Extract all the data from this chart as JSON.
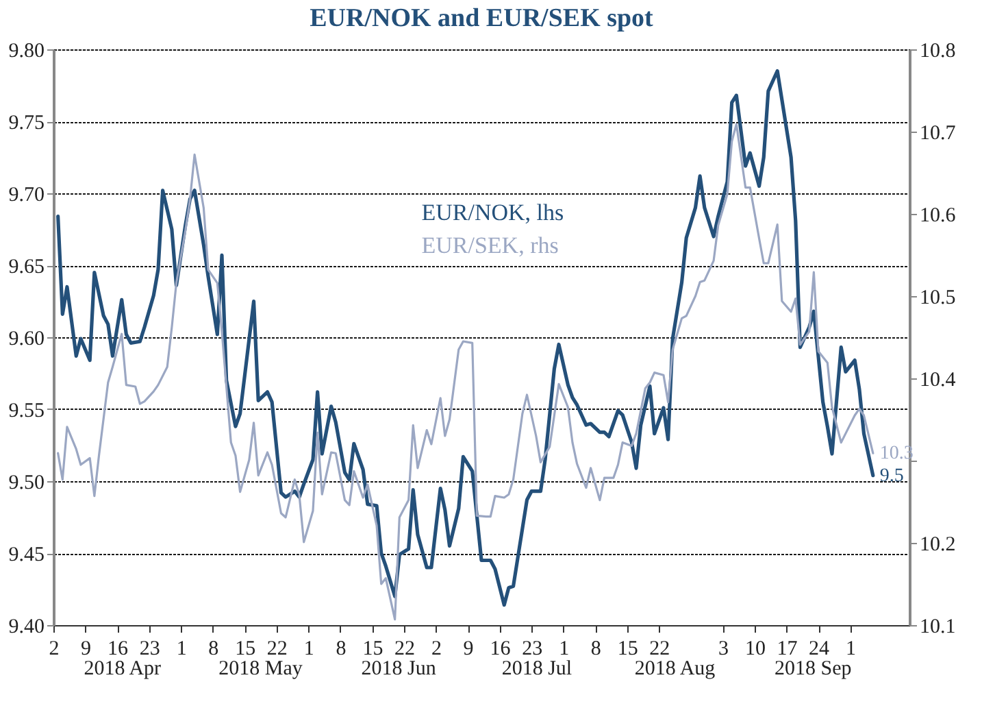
{
  "chart_data": {
    "type": "line",
    "title": "EUR/NOK and EUR/SEK spot",
    "xlim": [
      "2018-04-02",
      "2018-10-07"
    ],
    "xticks": [
      {
        "value": "2018-04-02",
        "label": "2"
      },
      {
        "value": "2018-04-09",
        "label": "9"
      },
      {
        "value": "2018-04-16",
        "label": "16"
      },
      {
        "value": "2018-04-23",
        "label": "23"
      },
      {
        "value": "2018-04-30",
        "label": "1"
      },
      {
        "value": "2018-05-07",
        "label": "8"
      },
      {
        "value": "2018-05-14",
        "label": "15"
      },
      {
        "value": "2018-05-21",
        "label": "22"
      },
      {
        "value": "2018-05-28",
        "label": "1"
      },
      {
        "value": "2018-06-04",
        "label": "8"
      },
      {
        "value": "2018-06-11",
        "label": "15"
      },
      {
        "value": "2018-06-18",
        "label": "22"
      },
      {
        "value": "2018-06-25",
        "label": "2"
      },
      {
        "value": "2018-07-02",
        "label": "9"
      },
      {
        "value": "2018-07-09",
        "label": "16"
      },
      {
        "value": "2018-07-16",
        "label": "23"
      },
      {
        "value": "2018-07-23",
        "label": "1"
      },
      {
        "value": "2018-07-30",
        "label": "8"
      },
      {
        "value": "2018-08-06",
        "label": "15"
      },
      {
        "value": "2018-08-13",
        "label": "22"
      },
      {
        "value": "2018-08-27",
        "label": "3"
      },
      {
        "value": "2018-09-03",
        "label": "10"
      },
      {
        "value": "2018-09-10",
        "label": "17"
      },
      {
        "value": "2018-09-17",
        "label": "24"
      },
      {
        "value": "2018-09-24",
        "label": "1"
      }
    ],
    "ylim": [
      9.4,
      9.8
    ],
    "yticks": [
      {
        "value": 9.4,
        "label": "9.40"
      },
      {
        "value": 9.45,
        "label": "9.45"
      },
      {
        "value": 9.5,
        "label": "9.50"
      },
      {
        "value": 9.55,
        "label": "9.55"
      },
      {
        "value": 9.6,
        "label": "9.60"
      },
      {
        "value": 9.65,
        "label": "9.65"
      },
      {
        "value": 9.7,
        "label": "9.70"
      },
      {
        "value": 9.75,
        "label": "9.75"
      },
      {
        "value": 9.8,
        "label": "9.80"
      }
    ],
    "y2lim": [
      10.1,
      10.8
    ],
    "y2ticks": [
      {
        "value": 10.1,
        "label": "10.1"
      },
      {
        "value": 10.2,
        "label": "10.2"
      },
      {
        "value": 10.3,
        "label": null
      },
      {
        "value": 10.4,
        "label": "10.4"
      },
      {
        "value": 10.5,
        "label": "10.5"
      },
      {
        "value": 10.6,
        "label": "10.6"
      },
      {
        "value": 10.7,
        "label": "10.7"
      },
      {
        "value": 10.8,
        "label": "10.8"
      }
    ],
    "grid": "y",
    "legend": "top",
    "line_style": "solid",
    "annotations": [
      "2018 Apr",
      "2018 May",
      "2018 Jun",
      "2018 Jul",
      "2018 Aug",
      "2018 Sep"
    ],
    "series": [
      {
        "name": "EUR/NOK, lhs",
        "color": "#24507a",
        "x": [
          "2018-04-03",
          "2018-04-04",
          "2018-04-05",
          "2018-04-07",
          "2018-04-08",
          "2018-04-10",
          "2018-04-11",
          "2018-04-13",
          "2018-04-14",
          "2018-04-15",
          "2018-04-17",
          "2018-04-18",
          "2018-04-19",
          "2018-04-21",
          "2018-04-22",
          "2018-04-24",
          "2018-04-25",
          "2018-04-26",
          "2018-04-28",
          "2018-04-29",
          "2018-05-01",
          "2018-05-02",
          "2018-05-03",
          "2018-05-05",
          "2018-05-06",
          "2018-05-08",
          "2018-05-09",
          "2018-05-10",
          "2018-05-12",
          "2018-05-13",
          "2018-05-14",
          "2018-05-16",
          "2018-05-17",
          "2018-05-19",
          "2018-05-20",
          "2018-05-22",
          "2018-05-23",
          "2018-05-25",
          "2018-05-26",
          "2018-05-27",
          "2018-05-29",
          "2018-05-30",
          "2018-05-31",
          "2018-06-02",
          "2018-06-03",
          "2018-06-05",
          "2018-06-06",
          "2018-06-07",
          "2018-06-09",
          "2018-06-10",
          "2018-06-12",
          "2018-06-13",
          "2018-06-14",
          "2018-06-16",
          "2018-06-17",
          "2018-06-19",
          "2018-06-20",
          "2018-06-21",
          "2018-06-23",
          "2018-06-24",
          "2018-06-26",
          "2018-06-27",
          "2018-06-28",
          "2018-06-30",
          "2018-07-01",
          "2018-07-03",
          "2018-07-04",
          "2018-07-05",
          "2018-07-07",
          "2018-07-08",
          "2018-07-10",
          "2018-07-11",
          "2018-07-12",
          "2018-07-14",
          "2018-07-15",
          "2018-07-16",
          "2018-07-18",
          "2018-07-19",
          "2018-07-21",
          "2018-07-22",
          "2018-07-24",
          "2018-07-25",
          "2018-07-26",
          "2018-07-28",
          "2018-07-29",
          "2018-07-31",
          "2018-08-01",
          "2018-08-02",
          "2018-08-04",
          "2018-08-05",
          "2018-08-07",
          "2018-08-08",
          "2018-08-09",
          "2018-08-11",
          "2018-08-12",
          "2018-08-14",
          "2018-08-15",
          "2018-08-16",
          "2018-08-18",
          "2018-08-19",
          "2018-08-21",
          "2018-08-22",
          "2018-08-23",
          "2018-08-25",
          "2018-08-26",
          "2018-08-28",
          "2018-08-29",
          "2018-08-30",
          "2018-09-01",
          "2018-09-02",
          "2018-09-04",
          "2018-09-05",
          "2018-09-06",
          "2018-09-08",
          "2018-09-09",
          "2018-09-11",
          "2018-09-12",
          "2018-09-13",
          "2018-09-15",
          "2018-09-16",
          "2018-09-18",
          "2018-09-19",
          "2018-09-20",
          "2018-09-22",
          "2018-09-23",
          "2018-09-25",
          "2018-09-26",
          "2018-09-27",
          "2018-09-29"
        ],
        "values": [
          9.684,
          9.616,
          9.635,
          9.587,
          9.599,
          9.584,
          9.645,
          9.615,
          9.609,
          9.587,
          9.626,
          9.602,
          9.596,
          9.597,
          9.607,
          9.629,
          9.647,
          9.702,
          9.675,
          9.636,
          9.678,
          9.696,
          9.702,
          9.664,
          9.642,
          9.602,
          9.657,
          9.57,
          9.538,
          9.547,
          9.573,
          9.625,
          9.556,
          9.562,
          9.555,
          9.492,
          9.489,
          9.493,
          9.489,
          9.498,
          9.515,
          9.562,
          9.519,
          9.552,
          9.541,
          9.506,
          9.501,
          9.526,
          9.508,
          9.484,
          9.483,
          9.45,
          9.441,
          9.42,
          9.449,
          9.453,
          9.494,
          9.463,
          9.44,
          9.44,
          9.495,
          9.48,
          9.455,
          9.481,
          9.517,
          9.507,
          9.476,
          9.445,
          9.445,
          9.439,
          9.414,
          9.426,
          9.427,
          9.467,
          9.487,
          9.493,
          9.493,
          9.515,
          9.578,
          9.595,
          9.567,
          9.558,
          9.553,
          9.539,
          9.54,
          9.534,
          9.534,
          9.531,
          9.549,
          9.546,
          9.527,
          9.509,
          9.539,
          9.566,
          9.533,
          9.551,
          9.529,
          9.599,
          9.638,
          9.669,
          9.69,
          9.712,
          9.69,
          9.67,
          9.684,
          9.708,
          9.763,
          9.768,
          9.719,
          9.728,
          9.705,
          9.725,
          9.771,
          9.785,
          9.765,
          9.725,
          9.681,
          9.593,
          9.607,
          9.618,
          9.555,
          9.538,
          9.519,
          9.593,
          9.576,
          9.584,
          9.564,
          9.533,
          9.504
        ],
        "value_labels": [
          null,
          null,
          null,
          null,
          null,
          null,
          null,
          null,
          null,
          null,
          null,
          null,
          null,
          null,
          null,
          null,
          null,
          null,
          null,
          null,
          null,
          null,
          null,
          null,
          null,
          null,
          null,
          null,
          null,
          null,
          null,
          null,
          null,
          null,
          null,
          null,
          null,
          null,
          null,
          null,
          null,
          null,
          null,
          null,
          null,
          null,
          null,
          null,
          null,
          null,
          null,
          null,
          null,
          null,
          null,
          null,
          null,
          null,
          null,
          null,
          null,
          null,
          null,
          null,
          null,
          null,
          null,
          null,
          null,
          null,
          null,
          null,
          null,
          null,
          null,
          null,
          null,
          null,
          null,
          null,
          null,
          null,
          null,
          null,
          null,
          null,
          null,
          null,
          null,
          null,
          null,
          null,
          null,
          null,
          null,
          null,
          null,
          null,
          null,
          null,
          null,
          null,
          null,
          null,
          null,
          null,
          null,
          null,
          null,
          null,
          null,
          null,
          null,
          null,
          null,
          null,
          null,
          null,
          null,
          null,
          null,
          null,
          null,
          null,
          null,
          null,
          null,
          null,
          "9.5"
        ]
      },
      {
        "name": "EUR/SEK, rhs",
        "color": "#9ba7c3",
        "axis": "y2",
        "x": [
          "2018-04-03",
          "2018-04-04",
          "2018-04-05",
          "2018-04-07",
          "2018-04-08",
          "2018-04-10",
          "2018-04-11",
          "2018-04-12",
          "2018-04-14",
          "2018-04-15",
          "2018-04-17",
          "2018-04-18",
          "2018-04-20",
          "2018-04-21",
          "2018-04-22",
          "2018-04-24",
          "2018-04-25",
          "2018-04-27",
          "2018-04-28",
          "2018-04-29",
          "2018-05-01",
          "2018-05-02",
          "2018-05-03",
          "2018-05-05",
          "2018-05-06",
          "2018-05-08",
          "2018-05-09",
          "2018-05-11",
          "2018-05-12",
          "2018-05-13",
          "2018-05-15",
          "2018-05-16",
          "2018-05-17",
          "2018-05-19",
          "2018-05-20",
          "2018-05-22",
          "2018-05-23",
          "2018-05-25",
          "2018-05-26",
          "2018-05-27",
          "2018-05-29",
          "2018-05-30",
          "2018-05-31",
          "2018-06-02",
          "2018-06-03",
          "2018-06-05",
          "2018-06-06",
          "2018-06-07",
          "2018-06-09",
          "2018-06-10",
          "2018-06-12",
          "2018-06-13",
          "2018-06-14",
          "2018-06-16",
          "2018-06-17",
          "2018-06-19",
          "2018-06-20",
          "2018-06-21",
          "2018-06-23",
          "2018-06-24",
          "2018-06-26",
          "2018-06-27",
          "2018-06-28",
          "2018-06-30",
          "2018-07-01",
          "2018-07-03",
          "2018-07-04",
          "2018-07-06",
          "2018-07-07",
          "2018-07-08",
          "2018-07-10",
          "2018-07-11",
          "2018-07-12",
          "2018-07-14",
          "2018-07-15",
          "2018-07-17",
          "2018-07-18",
          "2018-07-20",
          "2018-07-21",
          "2018-07-22",
          "2018-07-24",
          "2018-07-25",
          "2018-07-26",
          "2018-07-28",
          "2018-07-29",
          "2018-07-31",
          "2018-08-01",
          "2018-08-03",
          "2018-08-04",
          "2018-08-05",
          "2018-08-07",
          "2018-08-08",
          "2018-08-10",
          "2018-08-11",
          "2018-08-12",
          "2018-08-14",
          "2018-08-15",
          "2018-08-16",
          "2018-08-18",
          "2018-08-19",
          "2018-08-21",
          "2018-08-22",
          "2018-08-23",
          "2018-08-25",
          "2018-08-26",
          "2018-08-28",
          "2018-08-29",
          "2018-08-30",
          "2018-09-01",
          "2018-09-02",
          "2018-09-04",
          "2018-09-05",
          "2018-09-06",
          "2018-09-08",
          "2018-09-09",
          "2018-09-11",
          "2018-09-12",
          "2018-09-13",
          "2018-09-15",
          "2018-09-16",
          "2018-09-17",
          "2018-09-19",
          "2018-09-20",
          "2018-09-22",
          "2018-09-23",
          "2018-09-25",
          "2018-09-26",
          "2018-09-27",
          "2018-09-29"
        ],
        "values": [
          10.309,
          10.277,
          10.341,
          10.314,
          10.295,
          10.303,
          10.257,
          10.306,
          10.395,
          10.414,
          10.454,
          10.392,
          10.39,
          10.369,
          10.372,
          10.384,
          10.392,
          10.414,
          10.462,
          10.516,
          10.58,
          10.618,
          10.672,
          10.607,
          10.532,
          10.516,
          10.457,
          10.322,
          10.306,
          10.262,
          10.301,
          10.346,
          10.282,
          10.31,
          10.295,
          10.236,
          10.231,
          10.277,
          10.258,
          10.201,
          10.239,
          10.334,
          10.259,
          10.31,
          10.309,
          10.252,
          10.246,
          10.287,
          10.255,
          10.271,
          10.221,
          10.15,
          10.157,
          10.107,
          10.231,
          10.252,
          10.343,
          10.291,
          10.337,
          10.32,
          10.376,
          10.33,
          10.35,
          10.435,
          10.445,
          10.443,
          10.233,
          10.232,
          10.232,
          10.257,
          10.255,
          10.259,
          10.277,
          10.357,
          10.38,
          10.33,
          10.298,
          10.317,
          10.355,
          10.393,
          10.365,
          10.322,
          10.296,
          10.267,
          10.291,
          10.252,
          10.279,
          10.279,
          10.295,
          10.322,
          10.318,
          10.333,
          10.388,
          10.395,
          10.407,
          10.404,
          10.371,
          10.435,
          10.473,
          10.476,
          10.5,
          10.517,
          10.519,
          10.543,
          10.586,
          10.624,
          10.688,
          10.709,
          10.632,
          10.632,
          10.57,
          10.54,
          10.54,
          10.587,
          10.494,
          10.481,
          10.497,
          10.441,
          10.457,
          10.529,
          10.433,
          10.419,
          10.365,
          10.322,
          10.333,
          10.355,
          10.363,
          10.355,
          10.309
        ],
        "value_labels": [
          null,
          null,
          null,
          null,
          null,
          null,
          null,
          null,
          null,
          null,
          null,
          null,
          null,
          null,
          null,
          null,
          null,
          null,
          null,
          null,
          null,
          null,
          null,
          null,
          null,
          null,
          null,
          null,
          null,
          null,
          null,
          null,
          null,
          null,
          null,
          null,
          null,
          null,
          null,
          null,
          null,
          null,
          null,
          null,
          null,
          null,
          null,
          null,
          null,
          null,
          null,
          null,
          null,
          null,
          null,
          null,
          null,
          null,
          null,
          null,
          null,
          null,
          null,
          null,
          null,
          null,
          null,
          null,
          null,
          null,
          null,
          null,
          null,
          null,
          null,
          null,
          null,
          null,
          null,
          null,
          null,
          null,
          null,
          null,
          null,
          null,
          null,
          null,
          null,
          null,
          null,
          null,
          null,
          null,
          null,
          null,
          null,
          null,
          null,
          null,
          null,
          null,
          null,
          null,
          null,
          null,
          null,
          null,
          null,
          null,
          null,
          null,
          null,
          null,
          null,
          null,
          null,
          null,
          null,
          null,
          null,
          null,
          null,
          null,
          null,
          null,
          null,
          null,
          "10.3"
        ]
      }
    ]
  }
}
